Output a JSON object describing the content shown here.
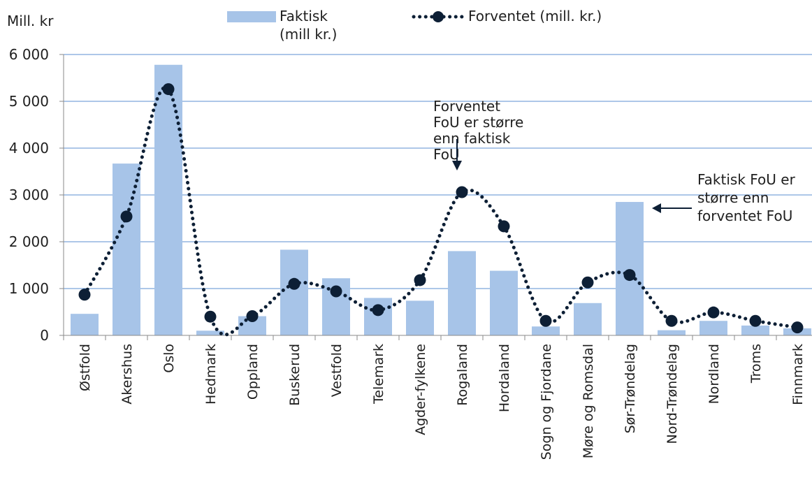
{
  "chart_data": {
    "type": "bar",
    "ylabel": "Mill. kr",
    "ylim": [
      0,
      6000
    ],
    "yticks": [
      0,
      1000,
      2000,
      3000,
      4000,
      5000,
      6000
    ],
    "ytick_labels": [
      "0",
      "1 000",
      "2 000",
      "3 000",
      "4 000",
      "5 000",
      "6 000"
    ],
    "grid": "horizontal",
    "legend_position": "top",
    "categories": [
      "Østfold",
      "Akershus",
      "Oslo",
      "Hedmark",
      "Oppland",
      "Buskerud",
      "Vestfold",
      "Telemark",
      "Agder-fylkene",
      "Rogaland",
      "Hordaland",
      "Sogn og Fjordane",
      "Møre og Romsdal",
      "Sør-Trøndelag",
      "Nord-Trøndelag",
      "Nordland",
      "Troms",
      "Finnmark"
    ],
    "series": [
      {
        "name_lines": [
          "Faktisk",
          "(mill kr.)"
        ],
        "type": "bar",
        "color": "#a7c4e8",
        "values": [
          460,
          3670,
          5780,
          100,
          410,
          1830,
          1220,
          800,
          740,
          1800,
          1380,
          190,
          690,
          2850,
          110,
          310,
          210,
          150
        ]
      },
      {
        "name": "Forventet (mill. kr.)",
        "type": "line",
        "style": "dotted-with-markers",
        "color": "#0d1f35",
        "values": [
          870,
          2540,
          5260,
          400,
          410,
          1100,
          940,
          540,
          1180,
          3060,
          2330,
          310,
          1130,
          1290,
          310,
          490,
          310,
          170
        ]
      }
    ],
    "annotations": [
      {
        "lines": [
          "Forventet",
          "FoU er større",
          "enn faktisk",
          "FoU"
        ],
        "category": "Rogaland",
        "arrow": "down"
      },
      {
        "lines": [
          "Faktisk FoU er",
          "større enn",
          "forventet FoU"
        ],
        "category": "Sør-Trøndelag",
        "arrow": "left"
      }
    ]
  }
}
